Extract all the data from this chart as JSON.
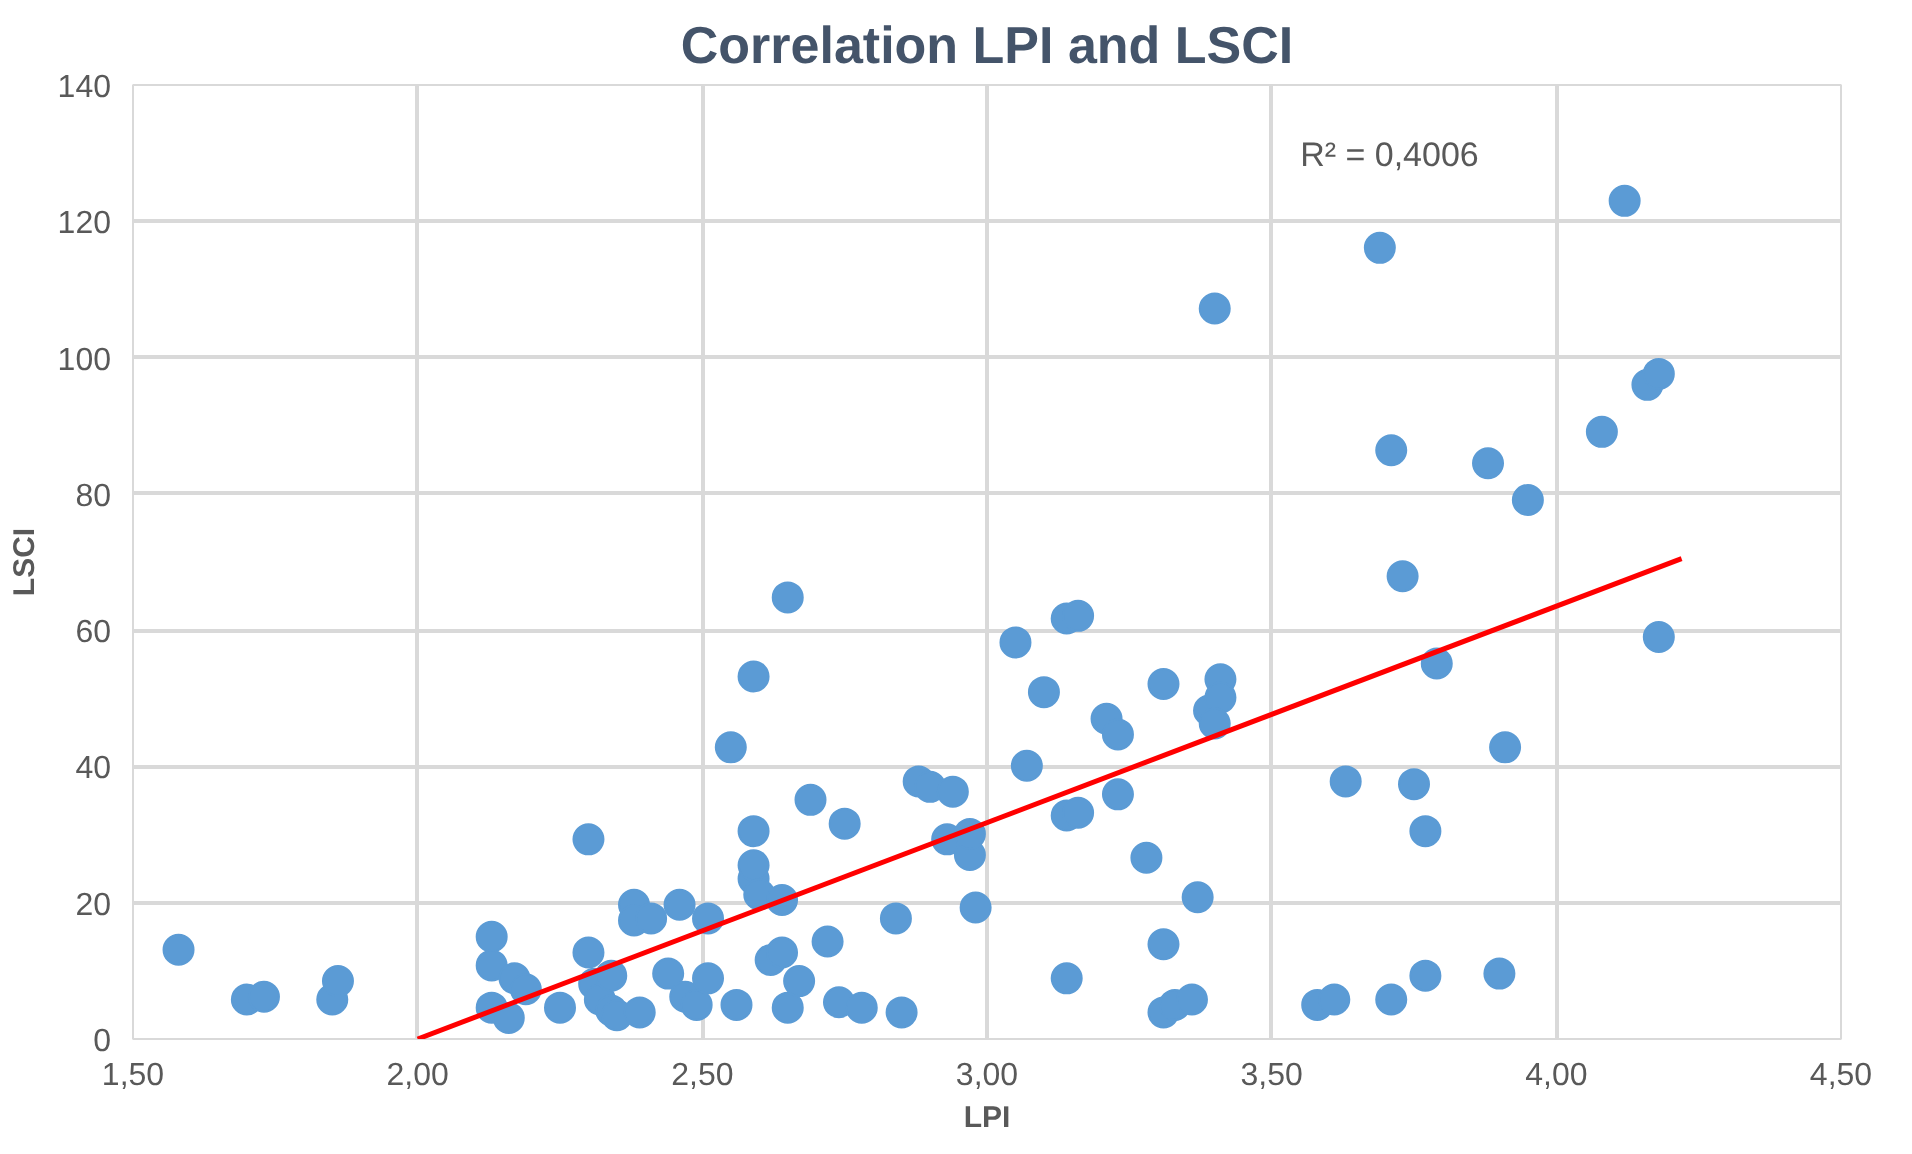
{
  "chart_data": {
    "type": "scatter",
    "title": "Correlation LPI and LSCI",
    "xlabel": "LPI",
    "ylabel": "LSCI",
    "annotations": [
      "R² = 0,4006"
    ],
    "xlim": [
      1.5,
      4.5
    ],
    "ylim": [
      0,
      140
    ],
    "xticks": [
      {
        "value": 1.5,
        "label": "1,50"
      },
      {
        "value": 2.0,
        "label": "2,00"
      },
      {
        "value": 2.5,
        "label": "2,50"
      },
      {
        "value": 3.0,
        "label": "3,00"
      },
      {
        "value": 3.5,
        "label": "3,50"
      },
      {
        "value": 4.0,
        "label": "4,00"
      },
      {
        "value": 4.5,
        "label": "4,50"
      }
    ],
    "yticks": [
      0,
      20,
      40,
      60,
      80,
      100,
      120,
      140
    ],
    "grid": true,
    "series": [
      {
        "color": "#5b9bd5",
        "marker": "circle",
        "x": [
          1.58,
          1.7,
          1.73,
          1.85,
          1.86,
          2.13,
          2.13,
          2.13,
          2.16,
          2.17,
          2.19,
          2.25,
          2.3,
          2.3,
          2.31,
          2.32,
          2.34,
          2.34,
          2.35,
          2.38,
          2.38,
          2.39,
          2.41,
          2.44,
          2.46,
          2.47,
          2.49,
          2.51,
          2.51,
          2.55,
          2.56,
          2.59,
          2.59,
          2.59,
          2.59,
          2.6,
          2.62,
          2.64,
          2.64,
          2.65,
          2.65,
          2.67,
          2.69,
          2.72,
          2.75,
          2.74,
          2.78,
          2.84,
          2.85,
          2.88,
          2.9,
          2.94,
          2.93,
          2.97,
          2.97,
          2.98,
          3.05,
          3.07,
          3.1,
          3.14,
          3.16,
          3.14,
          3.14,
          3.16,
          3.21,
          3.23,
          3.23,
          3.28,
          3.31,
          3.31,
          3.31,
          3.33,
          3.36,
          3.37,
          3.39,
          3.41,
          3.41,
          3.4,
          3.4,
          3.58,
          3.61,
          3.63,
          3.69,
          3.71,
          3.71,
          3.73,
          3.75,
          3.77,
          3.77,
          3.79,
          3.88,
          3.91,
          3.9,
          3.95,
          4.08,
          4.12,
          4.16,
          4.18,
          4.18
        ],
        "values": [
          13.1,
          5.8,
          6.2,
          5.8,
          8.5,
          15,
          10.8,
          4.6,
          3.1,
          8.9,
          7.3,
          4.6,
          29.3,
          12.7,
          8.1,
          5.8,
          9.3,
          4.2,
          3.5,
          19.7,
          17.4,
          3.9,
          17.7,
          9.6,
          19.7,
          6.2,
          5.0,
          8.9,
          17.7,
          42.8,
          5.0,
          53.2,
          23.5,
          25.5,
          30.5,
          21.2,
          11.6,
          12.7,
          20.4,
          64.8,
          4.6,
          8.5,
          35.1,
          14.3,
          31.6,
          5.4,
          4.6,
          17.7,
          3.9,
          37.8,
          37.0,
          36.3,
          29.3,
          27.0,
          30.1,
          19.3,
          58.2,
          40.1,
          50.9,
          61.7,
          62.1,
          8.9,
          32.8,
          33.2,
          47.0,
          44.7,
          35.9,
          26.6,
          52.1,
          13.9,
          3.9,
          5.0,
          5.8,
          20.8,
          48.2,
          52.8,
          50.1,
          46.3,
          107.2,
          5.0,
          5.8,
          37.8,
          116.1,
          86.4,
          5.8,
          67.9,
          37.4,
          30.5,
          9.3,
          55.1,
          84.5,
          42.8,
          9.6,
          79.1,
          89.1,
          123.0,
          96.0,
          97.6,
          59.0
        ]
      },
      {
        "type": "line",
        "color": "#ff0000",
        "marker": "none",
        "line_style": "solid",
        "x": [
          2.0,
          4.22
        ],
        "values": [
          0,
          70.5
        ]
      }
    ]
  }
}
